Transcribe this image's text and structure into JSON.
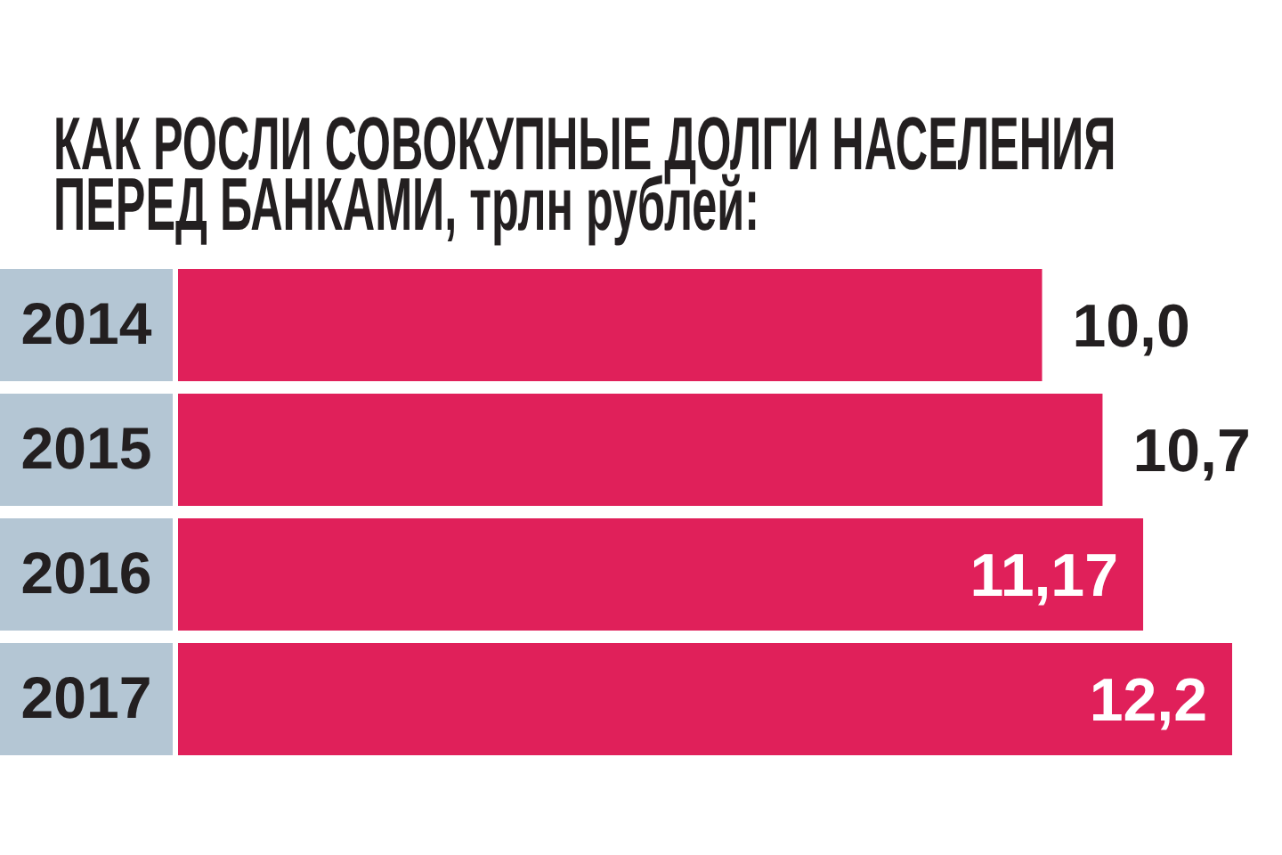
{
  "chart_data": {
    "type": "bar",
    "orientation": "horizontal",
    "title": "КАК РОСЛИ СОВОКУПНЫЕ ДОЛГИ НАСЕЛЕНИЯ ПЕРЕД БАНКАМИ, трлн рублей:",
    "categories": [
      "2014",
      "2015",
      "2016",
      "2017"
    ],
    "values": [
      10.0,
      10.7,
      11.17,
      12.2
    ],
    "value_labels": [
      "10,0",
      "10,7",
      "11,17",
      "12,2"
    ],
    "color": "#e0205a"
  }
}
